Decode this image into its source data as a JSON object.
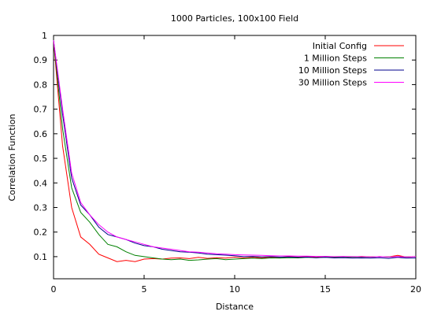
{
  "chart_data": {
    "type": "line",
    "title": "1000 Particles, 100x100 Field",
    "xlabel": "Distance",
    "ylabel": "Correlation Function",
    "xlim": [
      0,
      20
    ],
    "ylim": [
      0.01,
      1
    ],
    "xticks": [
      0,
      5,
      10,
      15,
      20
    ],
    "yticks": [
      0.1,
      0.2,
      0.3,
      0.4,
      0.5,
      0.6,
      0.7,
      0.8,
      0.9,
      1
    ],
    "xtick_labels": [
      "0",
      "5",
      "10",
      "15",
      "20"
    ],
    "ytick_labels": [
      "0.1",
      "0.2",
      "0.3",
      "0.4",
      "0.5",
      "0.6",
      "0.7",
      "0.8",
      "0.9",
      "1"
    ],
    "legend_position": "top-right",
    "grid": false,
    "series": [
      {
        "name": "Initial Config",
        "color": "#ff0000",
        "x": [
          0,
          0.5,
          1,
          1.5,
          2,
          2.5,
          3,
          3.5,
          4,
          4.5,
          5,
          5.5,
          6,
          6.5,
          7,
          7.5,
          8,
          8.5,
          9,
          9.5,
          10,
          10.5,
          11,
          11.5,
          12,
          12.5,
          13,
          13.5,
          14,
          14.5,
          15,
          15.5,
          16,
          16.5,
          17,
          17.5,
          18,
          18.5,
          19,
          19.5,
          20
        ],
        "y": [
          0.98,
          0.55,
          0.3,
          0.18,
          0.15,
          0.11,
          0.095,
          0.08,
          0.085,
          0.08,
          0.09,
          0.092,
          0.09,
          0.094,
          0.095,
          0.092,
          0.097,
          0.093,
          0.096,
          0.094,
          0.098,
          0.095,
          0.097,
          0.096,
          0.098,
          0.097,
          0.1,
          0.098,
          0.1,
          0.097,
          0.101,
          0.099,
          0.1,
          0.098,
          0.101,
          0.099,
          0.1,
          0.099,
          0.105,
          0.098,
          0.1
        ]
      },
      {
        "name": "1 Million Steps",
        "color": "#008000",
        "x": [
          0,
          0.5,
          1,
          1.5,
          2,
          2.5,
          3,
          3.5,
          4,
          4.5,
          5,
          5.5,
          6,
          6.5,
          7,
          7.5,
          8,
          8.5,
          9,
          9.5,
          10,
          10.5,
          11,
          11.5,
          12,
          12.5,
          13,
          13.5,
          14,
          14.5,
          15,
          15.5,
          16,
          16.5,
          17,
          17.5,
          18,
          18.5,
          19,
          19.5,
          20
        ],
        "y": [
          0.98,
          0.62,
          0.38,
          0.28,
          0.24,
          0.19,
          0.15,
          0.14,
          0.12,
          0.105,
          0.1,
          0.095,
          0.09,
          0.088,
          0.09,
          0.085,
          0.087,
          0.09,
          0.092,
          0.088,
          0.09,
          0.092,
          0.094,
          0.092,
          0.095,
          0.094,
          0.096,
          0.095,
          0.097,
          0.096,
          0.098,
          0.097,
          0.099,
          0.098,
          0.099,
          0.098,
          0.1,
          0.099,
          0.1,
          0.099,
          0.1
        ]
      },
      {
        "name": "10 Million Steps",
        "color": "#00008b",
        "x": [
          0,
          0.5,
          1,
          1.5,
          2,
          2.5,
          3,
          3.5,
          4,
          4.5,
          5,
          5.5,
          6,
          6.5,
          7,
          7.5,
          8,
          8.5,
          9,
          9.5,
          10,
          10.5,
          11,
          11.5,
          12,
          12.5,
          13,
          13.5,
          14,
          14.5,
          15,
          15.5,
          16,
          16.5,
          17,
          17.5,
          18,
          18.5,
          19,
          19.5,
          20
        ],
        "y": [
          0.98,
          0.68,
          0.42,
          0.31,
          0.27,
          0.22,
          0.19,
          0.18,
          0.17,
          0.155,
          0.145,
          0.14,
          0.13,
          0.125,
          0.12,
          0.118,
          0.115,
          0.11,
          0.108,
          0.106,
          0.104,
          0.1,
          0.101,
          0.099,
          0.1,
          0.098,
          0.099,
          0.097,
          0.098,
          0.096,
          0.097,
          0.095,
          0.096,
          0.094,
          0.095,
          0.094,
          0.096,
          0.093,
          0.097,
          0.094,
          0.095
        ]
      },
      {
        "name": "30 Million Steps",
        "color": "#ff00ff",
        "x": [
          0,
          0.5,
          1,
          1.5,
          2,
          2.5,
          3,
          3.5,
          4,
          4.5,
          5,
          5.5,
          6,
          6.5,
          7,
          7.5,
          8,
          8.5,
          9,
          9.5,
          10,
          10.5,
          11,
          11.5,
          12,
          12.5,
          13,
          13.5,
          14,
          14.5,
          15,
          15.5,
          16,
          16.5,
          17,
          17.5,
          18,
          18.5,
          19,
          19.5,
          20
        ],
        "y": [
          0.98,
          0.7,
          0.44,
          0.32,
          0.27,
          0.23,
          0.2,
          0.18,
          0.17,
          0.16,
          0.15,
          0.14,
          0.135,
          0.13,
          0.125,
          0.12,
          0.118,
          0.115,
          0.112,
          0.11,
          0.108,
          0.107,
          0.106,
          0.105,
          0.104,
          0.103,
          0.103,
          0.102,
          0.102,
          0.101,
          0.101,
          0.1,
          0.101,
          0.1,
          0.1,
          0.099,
          0.1,
          0.099,
          0.1,
          0.099,
          0.1
        ]
      }
    ]
  }
}
